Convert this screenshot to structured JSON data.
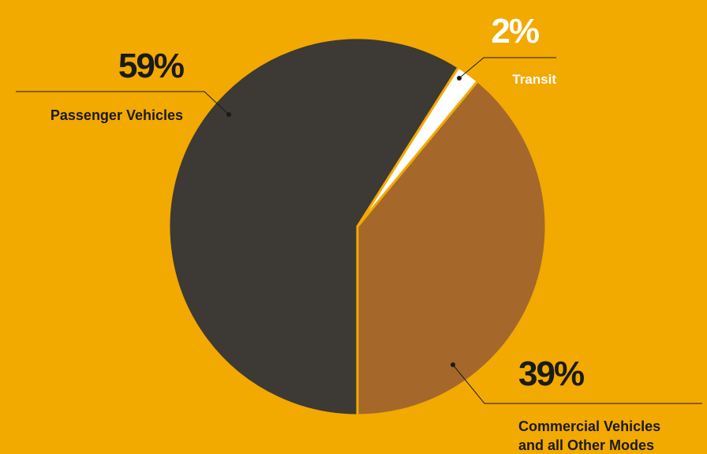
{
  "chart_data": {
    "type": "pie",
    "categories": [
      "Passenger Vehicles",
      "Transit",
      "Commercial Vehicles and all Other Modes"
    ],
    "values": [
      59,
      2,
      39
    ],
    "labels": [
      {
        "pct": "59%",
        "lines": [
          "Passenger Vehicles"
        ]
      },
      {
        "pct": "2%",
        "lines": [
          "Transit"
        ]
      },
      {
        "pct": "39%",
        "lines": [
          "Commercial Vehicles",
          "and all Other Modes"
        ]
      }
    ],
    "colors": [
      "#3D3935",
      "#FFFFFF",
      "#A5682A"
    ],
    "background": "#F2A900",
    "legend": "none"
  }
}
